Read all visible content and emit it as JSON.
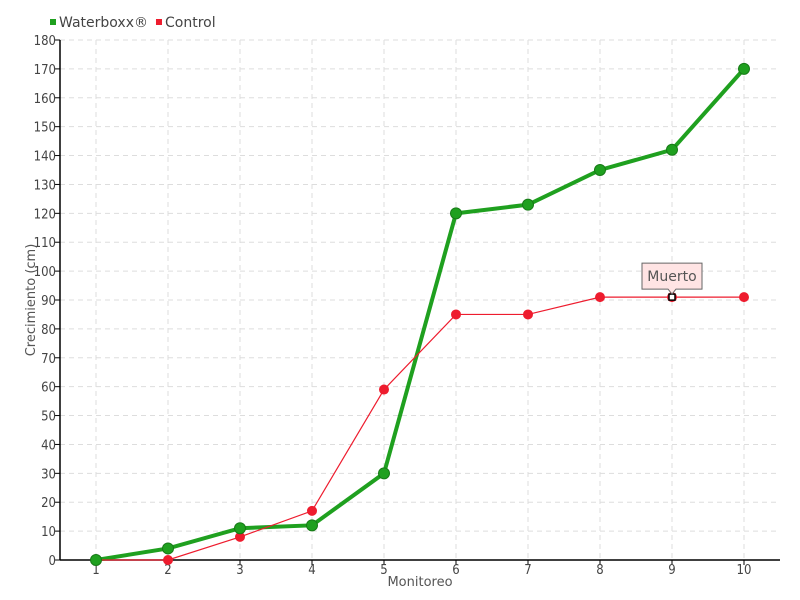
{
  "chart_data": {
    "type": "line",
    "title": "",
    "xlabel": "Monitoreo",
    "ylabel": "Crecimiento (cm)",
    "x": [
      1,
      2,
      3,
      4,
      5,
      6,
      7,
      8,
      9,
      10
    ],
    "xlim": [
      0.5,
      10.5
    ],
    "ylim": [
      0,
      180
    ],
    "yticks": [
      0,
      10,
      20,
      30,
      40,
      50,
      60,
      70,
      80,
      90,
      100,
      110,
      120,
      130,
      140,
      150,
      160,
      170,
      180
    ],
    "grid": true,
    "legend_position": "top-left",
    "series": [
      {
        "name": "Waterboxx®",
        "color": "#1fa01f",
        "values": [
          0,
          4,
          11,
          12,
          30,
          120,
          123,
          135,
          142,
          170
        ]
      },
      {
        "name": "Control",
        "color": "#ee1c2e",
        "values": [
          0,
          0,
          8,
          17,
          59,
          85,
          85,
          91,
          91,
          91
        ]
      }
    ],
    "annotations": [
      {
        "series": "Control",
        "x": 9,
        "y": 91,
        "text": "Muerto"
      }
    ]
  }
}
